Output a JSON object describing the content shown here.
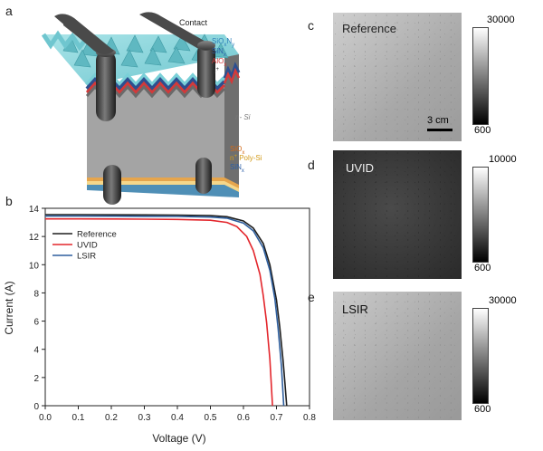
{
  "panels": {
    "a": {
      "letter": "a",
      "labels": {
        "contact": "Contact",
        "sioxny": "SiOxNy",
        "sinx_top": "SiNx",
        "alox": "AlOx",
        "p_plus": "p+",
        "n_si": "n- Si",
        "siox": "SiOx",
        "poly_si": "n+ Poly-Si",
        "sinx_bottom": "SiNx"
      }
    },
    "b": {
      "letter": "b"
    },
    "c": {
      "letter": "c",
      "label": "Reference",
      "scale_max": "30000",
      "scale_min": "600",
      "scale_bar": "3 cm"
    },
    "d": {
      "letter": "d",
      "label": "UVID",
      "scale_max": "10000",
      "scale_min": "600"
    },
    "e": {
      "letter": "e",
      "label": "LSIR",
      "scale_max": "30000",
      "scale_min": "600"
    }
  },
  "chart_data": {
    "type": "line",
    "xlabel": "Voltage (V)",
    "ylabel": "Current (A)",
    "xlim": [
      0.0,
      0.8
    ],
    "ylim": [
      0,
      14
    ],
    "xticks": [
      "0.0",
      "0.1",
      "0.2",
      "0.3",
      "0.4",
      "0.5",
      "0.6",
      "0.7",
      "0.8"
    ],
    "yticks": [
      "0",
      "2",
      "4",
      "6",
      "8",
      "10",
      "12",
      "14"
    ],
    "legend": "top-left",
    "series": [
      {
        "name": "Reference",
        "color": "#1f1f1f",
        "isc": 13.55,
        "voc": 0.731,
        "x": [
          0,
          0.1,
          0.2,
          0.3,
          0.4,
          0.5,
          0.55,
          0.6,
          0.63,
          0.66,
          0.68,
          0.7,
          0.71,
          0.72,
          0.725,
          0.731
        ],
        "y": [
          13.55,
          13.55,
          13.54,
          13.53,
          13.52,
          13.48,
          13.4,
          13.1,
          12.6,
          11.5,
          10.0,
          7.5,
          5.6,
          3.2,
          1.8,
          0
        ]
      },
      {
        "name": "UVID",
        "color": "#e3262c",
        "isc": 13.25,
        "voc": 0.688,
        "x": [
          0,
          0.1,
          0.2,
          0.3,
          0.4,
          0.5,
          0.55,
          0.58,
          0.61,
          0.63,
          0.65,
          0.66,
          0.67,
          0.68,
          0.688
        ],
        "y": [
          13.25,
          13.25,
          13.24,
          13.23,
          13.21,
          13.15,
          13.0,
          12.7,
          12.0,
          11.0,
          9.3,
          7.8,
          5.9,
          3.3,
          0
        ]
      },
      {
        "name": "LSIR",
        "color": "#2f5f9e",
        "isc": 13.45,
        "voc": 0.722,
        "x": [
          0,
          0.1,
          0.2,
          0.3,
          0.4,
          0.5,
          0.55,
          0.6,
          0.63,
          0.66,
          0.68,
          0.695,
          0.705,
          0.715,
          0.722
        ],
        "y": [
          13.45,
          13.45,
          13.44,
          13.43,
          13.42,
          13.38,
          13.3,
          12.95,
          12.4,
          11.2,
          9.6,
          7.6,
          5.5,
          2.8,
          0
        ]
      }
    ]
  }
}
